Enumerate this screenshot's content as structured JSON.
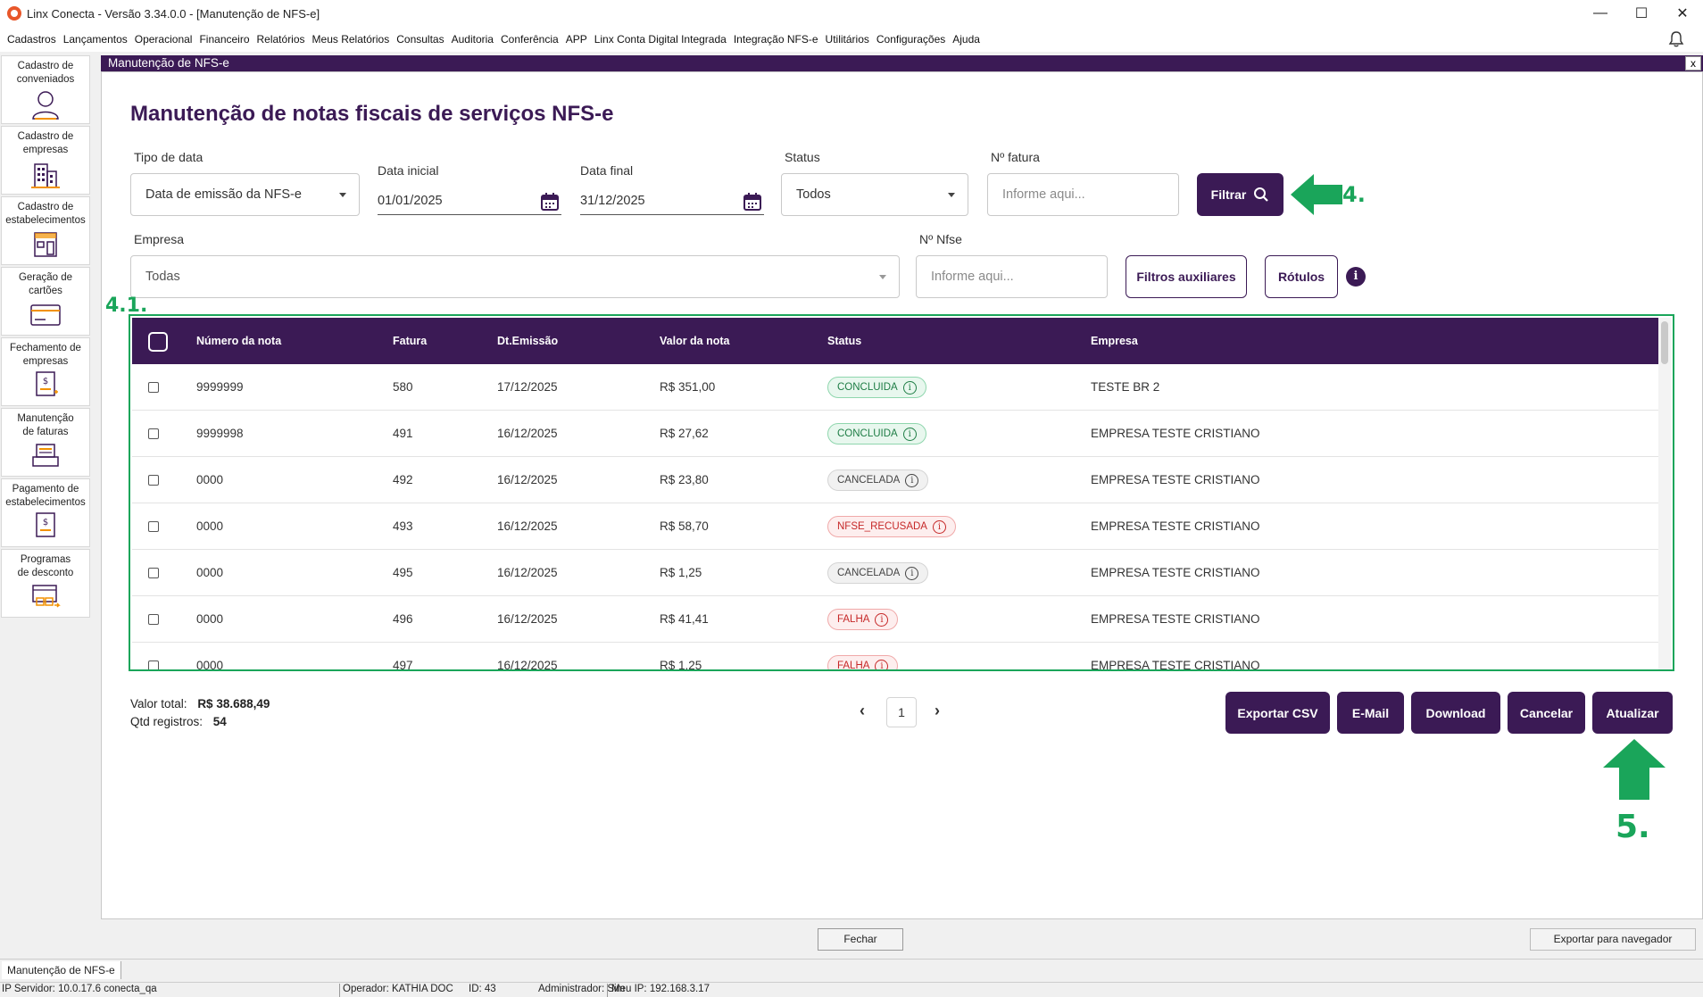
{
  "window": {
    "title": "Linx Conecta - Versão 3.34.0.0 - [Manutenção de NFS-e]",
    "minimize": "—",
    "maximize": "☐",
    "close": "✕"
  },
  "menu": [
    "Cadastros",
    "Lançamentos",
    "Operacional",
    "Financeiro",
    "Relatórios",
    "Meus Relatórios",
    "Consultas",
    "Auditoria",
    "Conferência",
    "APP",
    "Linx Conta Digital Integrada",
    "Integração NFS-e",
    "Utilitários",
    "Configurações",
    "Ajuda"
  ],
  "sidebar": [
    {
      "label": "Cadastro de\nconveniados",
      "icon": "user-icon"
    },
    {
      "label": "Cadastro de\nempresas",
      "icon": "building-icon"
    },
    {
      "label": "Cadastro de\nestabelecimentos",
      "icon": "store-icon"
    },
    {
      "label": "Geração de\ncartões",
      "icon": "card-icon"
    },
    {
      "label": "Fechamento de\nempresas",
      "icon": "invoice-icon"
    },
    {
      "label": "Manutenção\nde faturas",
      "icon": "inbox-icon"
    },
    {
      "label": "Pagamento de\nestabelecimentos",
      "icon": "payment-icon"
    },
    {
      "label": "Programas\nde desconto",
      "icon": "discount-icon"
    }
  ],
  "inner_window": {
    "title": "Manutenção de NFS-e",
    "close": "x"
  },
  "page_title": "Manutenção de notas fiscais de serviços NFS-e",
  "filters": {
    "tipo_data": {
      "label": "Tipo de data",
      "value": "Data de emissão da NFS-e"
    },
    "data_inicial": {
      "label": "Data inicial",
      "value": "01/01/2025"
    },
    "data_final": {
      "label": "Data final",
      "value": "31/12/2025"
    },
    "status": {
      "label": "Status",
      "value": "Todos"
    },
    "fatura": {
      "label": "Nº fatura",
      "placeholder": "Informe aqui..."
    },
    "filtrar": "Filtrar",
    "empresa": {
      "label": "Empresa",
      "value": "Todas"
    },
    "nfse": {
      "label": "Nº Nfse",
      "placeholder": "Informe aqui..."
    },
    "filtros_auxiliares": "Filtros auxiliares",
    "rotulos": "Rótulos",
    "info": "i"
  },
  "annotations": {
    "step4": "4.",
    "step41": "4.1.",
    "step5": "5."
  },
  "colors": {
    "primary": "#3b1a55",
    "annotation": "#1aa55a"
  },
  "table": {
    "columns": [
      "Número da nota",
      "Fatura",
      "Dt.Emissão",
      "Valor da nota",
      "Status",
      "Empresa"
    ],
    "rows": [
      {
        "numero": "9999999",
        "fatura": "580",
        "data": "17/12/2025",
        "valor": "R$ 351,00",
        "status": "CONCLUIDA",
        "status_type": "concluida",
        "empresa": "TESTE BR 2"
      },
      {
        "numero": "9999998",
        "fatura": "491",
        "data": "16/12/2025",
        "valor": "R$ 27,62",
        "status": "CONCLUIDA",
        "status_type": "concluida",
        "empresa": "EMPRESA TESTE CRISTIANO"
      },
      {
        "numero": "0000",
        "fatura": "492",
        "data": "16/12/2025",
        "valor": "R$ 23,80",
        "status": "CANCELADA",
        "status_type": "cancelada",
        "empresa": "EMPRESA TESTE CRISTIANO"
      },
      {
        "numero": "0000",
        "fatura": "493",
        "data": "16/12/2025",
        "valor": "R$ 58,70",
        "status": "NFSE_RECUSADA",
        "status_type": "falha",
        "empresa": "EMPRESA TESTE CRISTIANO"
      },
      {
        "numero": "0000",
        "fatura": "495",
        "data": "16/12/2025",
        "valor": "R$ 1,25",
        "status": "CANCELADA",
        "status_type": "cancelada",
        "empresa": "EMPRESA TESTE CRISTIANO"
      },
      {
        "numero": "0000",
        "fatura": "496",
        "data": "16/12/2025",
        "valor": "R$ 41,41",
        "status": "FALHA",
        "status_type": "falha",
        "empresa": "EMPRESA TESTE CRISTIANO"
      },
      {
        "numero": "0000",
        "fatura": "497",
        "data": "16/12/2025",
        "valor": "R$ 1,25",
        "status": "FALHA",
        "status_type": "falha",
        "empresa": "EMPRESA TESTE CRISTIANO"
      }
    ]
  },
  "totals": {
    "valor_label": "Valor total:",
    "valor": "R$ 38.688,49",
    "qtd_label": "Qtd registros:",
    "qtd": "54"
  },
  "pagination": {
    "prev": "‹",
    "page": "1",
    "next": "›"
  },
  "actions": {
    "exportar_csv": "Exportar CSV",
    "email": "E-Mail",
    "download": "Download",
    "cancelar": "Cancelar",
    "atualizar": "Atualizar"
  },
  "footer": {
    "fechar": "Fechar",
    "exportar_navegador": "Exportar para navegador"
  },
  "taskbar": {
    "tab": "Manutenção de NFS-e"
  },
  "status_bar": {
    "ip_servidor": "IP Servidor: 10.0.17.6 conecta_qa",
    "operador": "Operador: KATHIA DOC",
    "id": "ID: 43",
    "admin": "Administrador: Sim",
    "meu_ip": "Meu IP: 192.168.3.17"
  }
}
